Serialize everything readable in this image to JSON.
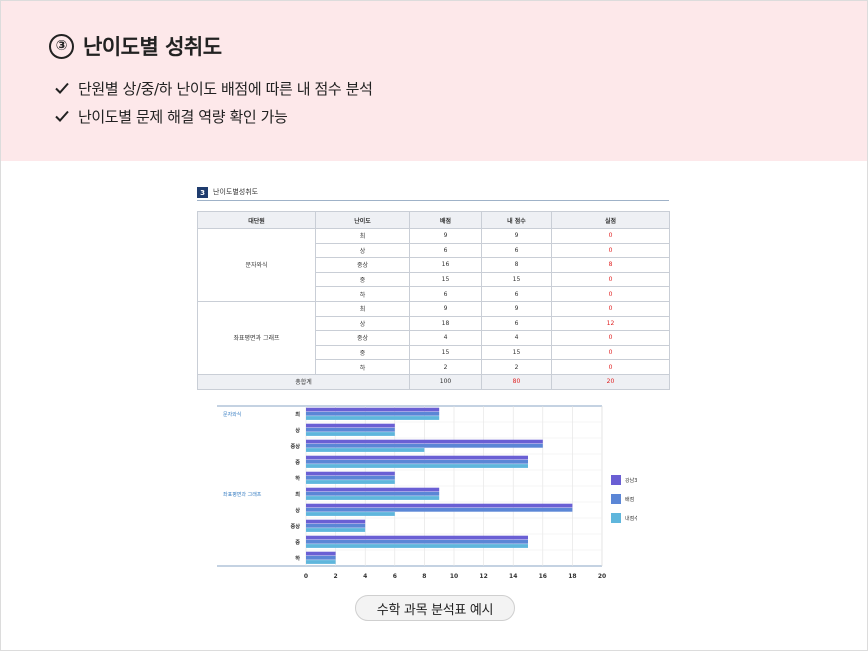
{
  "header": {
    "number": "③",
    "title": "난이도별 성취도",
    "bullets": [
      "단원별 상/중/하 난이도 배점에 따른 내 점수 분석",
      "난이도별 문제 해결 역량 확인 가능"
    ]
  },
  "section": {
    "number": "3",
    "title": "난이도별성취도"
  },
  "table": {
    "headers": [
      "대단원",
      "난이도",
      "배점",
      "내 점수",
      "실점"
    ],
    "groups": [
      {
        "unit": "문자와식",
        "rows": [
          {
            "level": "최",
            "points": "9",
            "score": "9",
            "loss": "0"
          },
          {
            "level": "상",
            "points": "6",
            "score": "6",
            "loss": "0"
          },
          {
            "level": "중상",
            "points": "16",
            "score": "8",
            "loss": "8"
          },
          {
            "level": "중",
            "points": "15",
            "score": "15",
            "loss": "0"
          },
          {
            "level": "하",
            "points": "6",
            "score": "6",
            "loss": "0"
          }
        ]
      },
      {
        "unit": "좌표평면과 그래프",
        "rows": [
          {
            "level": "최",
            "points": "9",
            "score": "9",
            "loss": "0"
          },
          {
            "level": "상",
            "points": "18",
            "score": "6",
            "loss": "12"
          },
          {
            "level": "중상",
            "points": "4",
            "score": "4",
            "loss": "0"
          },
          {
            "level": "중",
            "points": "15",
            "score": "15",
            "loss": "0"
          },
          {
            "level": "하",
            "points": "2",
            "score": "2",
            "loss": "0"
          }
        ]
      }
    ],
    "total": {
      "label": "총합계",
      "points": "100",
      "score": "80",
      "loss": "20"
    }
  },
  "chart_data": {
    "type": "bar",
    "orientation": "horizontal",
    "groups": [
      {
        "name": "문자와식",
        "categories": [
          "최",
          "상",
          "중상",
          "중",
          "하"
        ]
      },
      {
        "name": "좌표평면과 그래프",
        "categories": [
          "최",
          "상",
          "중상",
          "중",
          "하"
        ]
      }
    ],
    "series": [
      {
        "name": "강남3구평균",
        "color": "#6a5fd4",
        "values": [
          9,
          6,
          16,
          15,
          6,
          9,
          18,
          4,
          15,
          2
        ]
      },
      {
        "name": "배점",
        "color": "#5b86d6",
        "values": [
          9,
          6,
          16,
          15,
          6,
          9,
          18,
          4,
          15,
          2
        ]
      },
      {
        "name": "내점수",
        "color": "#5fb6dc",
        "values": [
          9,
          6,
          8,
          15,
          6,
          9,
          6,
          4,
          15,
          2
        ]
      }
    ],
    "xlim": [
      0,
      20
    ],
    "xticks": [
      "0",
      "2",
      "4",
      "6",
      "8",
      "10",
      "12",
      "14",
      "16",
      "18",
      "20"
    ],
    "grid": true,
    "legend": "right"
  },
  "caption": "수학 과목 분석표 예시"
}
